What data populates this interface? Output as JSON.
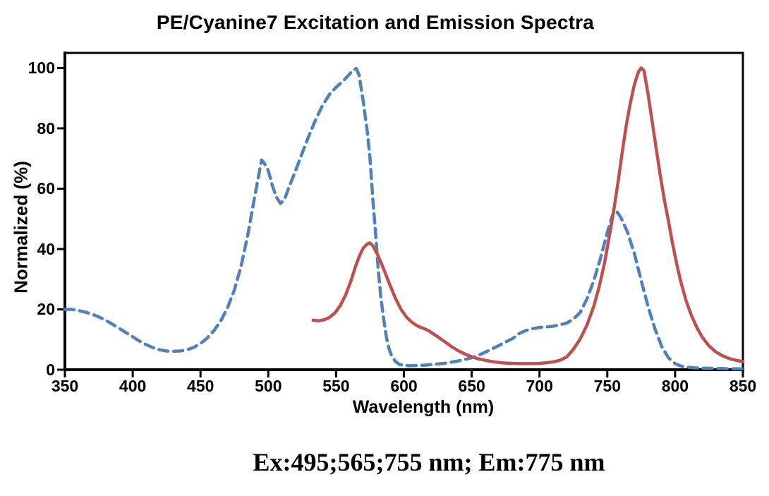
{
  "title": "PE/Cyanine7 Excitation and Emission Spectra",
  "annotation": "Ex:495;565;755 nm; Em:775 nm",
  "colors": {
    "excitation_blue": "#4F81BD",
    "emission_red": "#C0504D",
    "axis": "#000000",
    "text": "#000000",
    "background": "#FFFFFF"
  },
  "chart_data": {
    "type": "line",
    "title": "PE/Cyanine7 Excitation and Emission Spectra",
    "xlabel": "Wavelength (nm)",
    "ylabel": "Normalized (%)",
    "xlim": [
      350,
      850
    ],
    "ylim": [
      0,
      105
    ],
    "x_ticks": [
      350,
      400,
      450,
      500,
      550,
      600,
      650,
      700,
      750,
      800,
      850
    ],
    "y_ticks": [
      0,
      20,
      40,
      60,
      80,
      100
    ],
    "grid": false,
    "legend": "none",
    "frame": "box",
    "series": [
      {
        "name": "PE/Cyanine7 Excitation",
        "line_style": "dashed",
        "color": "#4F81BD",
        "peaks_nm": [
          495,
          565,
          755
        ],
        "points": [
          [
            350,
            20
          ],
          [
            355,
            20
          ],
          [
            360,
            19.6
          ],
          [
            365,
            19.1
          ],
          [
            370,
            18.4
          ],
          [
            375,
            17.5
          ],
          [
            380,
            16.4
          ],
          [
            385,
            15.1
          ],
          [
            390,
            13.7
          ],
          [
            395,
            12.3
          ],
          [
            400,
            10.9
          ],
          [
            405,
            9.5
          ],
          [
            410,
            8.3
          ],
          [
            415,
            7.3
          ],
          [
            420,
            6.6
          ],
          [
            425,
            6.2
          ],
          [
            430,
            6.1
          ],
          [
            435,
            6.2
          ],
          [
            440,
            6.6
          ],
          [
            445,
            7.4
          ],
          [
            450,
            8.7
          ],
          [
            455,
            10.5
          ],
          [
            460,
            13
          ],
          [
            465,
            16.2
          ],
          [
            470,
            20.6
          ],
          [
            475,
            26.5
          ],
          [
            480,
            34.5
          ],
          [
            485,
            45
          ],
          [
            490,
            57.5
          ],
          [
            493,
            64.5
          ],
          [
            495,
            69.5
          ],
          [
            497,
            68.5
          ],
          [
            500,
            66
          ],
          [
            503,
            61
          ],
          [
            506,
            57.2
          ],
          [
            509,
            55.1
          ],
          [
            512,
            56.5
          ],
          [
            515,
            60.2
          ],
          [
            520,
            65.8
          ],
          [
            525,
            71.8
          ],
          [
            530,
            77.6
          ],
          [
            535,
            83
          ],
          [
            540,
            87.6
          ],
          [
            545,
            91.2
          ],
          [
            550,
            93.6
          ],
          [
            555,
            95.6
          ],
          [
            560,
            98
          ],
          [
            563,
            99.4
          ],
          [
            565,
            99.8
          ],
          [
            567,
            97.5
          ],
          [
            570,
            89
          ],
          [
            573,
            79
          ],
          [
            575,
            70
          ],
          [
            577,
            57
          ],
          [
            579,
            46
          ],
          [
            581,
            33.5
          ],
          [
            583,
            24
          ],
          [
            585,
            17
          ],
          [
            587,
            11
          ],
          [
            589,
            7
          ],
          [
            591,
            4.5
          ],
          [
            594,
            2.6
          ],
          [
            597,
            1.7
          ],
          [
            600,
            1.4
          ],
          [
            605,
            1.3
          ],
          [
            610,
            1.4
          ],
          [
            615,
            1.5
          ],
          [
            620,
            1.7
          ],
          [
            625,
            1.9
          ],
          [
            630,
            2.1
          ],
          [
            635,
            2.5
          ],
          [
            640,
            2.9
          ],
          [
            645,
            3.4
          ],
          [
            650,
            4
          ],
          [
            655,
            4.8
          ],
          [
            660,
            5.8
          ],
          [
            665,
            6.9
          ],
          [
            670,
            8
          ],
          [
            675,
            9.2
          ],
          [
            680,
            10.3
          ],
          [
            685,
            12
          ],
          [
            690,
            13
          ],
          [
            695,
            13.6
          ],
          [
            700,
            14
          ],
          [
            705,
            14.2
          ],
          [
            710,
            14.4
          ],
          [
            715,
            14.9
          ],
          [
            720,
            15.4
          ],
          [
            725,
            16.8
          ],
          [
            730,
            19
          ],
          [
            735,
            23.5
          ],
          [
            740,
            29.5
          ],
          [
            745,
            37
          ],
          [
            750,
            45.5
          ],
          [
            753,
            50
          ],
          [
            755,
            52.7
          ],
          [
            757,
            52.4
          ],
          [
            760,
            50.5
          ],
          [
            765,
            45.5
          ],
          [
            770,
            38.5
          ],
          [
            775,
            29.5
          ],
          [
            780,
            21
          ],
          [
            785,
            13.7
          ],
          [
            790,
            7.8
          ],
          [
            795,
            4
          ],
          [
            800,
            2
          ],
          [
            805,
            1.1
          ],
          [
            810,
            0.8
          ],
          [
            815,
            0.6
          ],
          [
            820,
            0.5
          ],
          [
            825,
            0.5
          ],
          [
            830,
            0.4
          ],
          [
            835,
            0.4
          ],
          [
            840,
            0.3
          ],
          [
            845,
            0.3
          ],
          [
            850,
            0.3
          ]
        ]
      },
      {
        "name": "PE/Cyanine7 Emission",
        "line_style": "solid",
        "color": "#C0504D",
        "peaks_nm": [
          575,
          775
        ],
        "points": [
          [
            533,
            16.4
          ],
          [
            537,
            16.2
          ],
          [
            541,
            16.5
          ],
          [
            545,
            17.3
          ],
          [
            549,
            18.8
          ],
          [
            553,
            21.2
          ],
          [
            557,
            24.8
          ],
          [
            561,
            29.5
          ],
          [
            564,
            33.8
          ],
          [
            567,
            37.5
          ],
          [
            570,
            40.3
          ],
          [
            573,
            41.7
          ],
          [
            575,
            42
          ],
          [
            577,
            41.1
          ],
          [
            580,
            38.7
          ],
          [
            583,
            35.7
          ],
          [
            586,
            32.3
          ],
          [
            590,
            27.7
          ],
          [
            594,
            23.4
          ],
          [
            598,
            19.9
          ],
          [
            602,
            17.4
          ],
          [
            606,
            15.7
          ],
          [
            610,
            14.5
          ],
          [
            615,
            13.6
          ],
          [
            618,
            13
          ],
          [
            620,
            12.4
          ],
          [
            625,
            10.9
          ],
          [
            630,
            9.3
          ],
          [
            635,
            7.7
          ],
          [
            640,
            6.3
          ],
          [
            645,
            5.2
          ],
          [
            650,
            4.3
          ],
          [
            655,
            3.6
          ],
          [
            660,
            3.1
          ],
          [
            665,
            2.7
          ],
          [
            670,
            2.4
          ],
          [
            675,
            2.2
          ],
          [
            680,
            2.1
          ],
          [
            685,
            2
          ],
          [
            690,
            2
          ],
          [
            695,
            2
          ],
          [
            700,
            2.1
          ],
          [
            705,
            2.3
          ],
          [
            710,
            2.6
          ],
          [
            715,
            3.1
          ],
          [
            720,
            4.2
          ],
          [
            725,
            6.8
          ],
          [
            730,
            10.2
          ],
          [
            735,
            14.8
          ],
          [
            740,
            21
          ],
          [
            744,
            27.5
          ],
          [
            748,
            35.5
          ],
          [
            752,
            45.5
          ],
          [
            755,
            53.5
          ],
          [
            758,
            62.5
          ],
          [
            761,
            72
          ],
          [
            764,
            81
          ],
          [
            767,
            88.5
          ],
          [
            770,
            94.5
          ],
          [
            773,
            98.8
          ],
          [
            775,
            100
          ],
          [
            777,
            99.2
          ],
          [
            780,
            91.5
          ],
          [
            783,
            82.5
          ],
          [
            786,
            73.5
          ],
          [
            789,
            64.5
          ],
          [
            792,
            56.5
          ],
          [
            795,
            49.5
          ],
          [
            798,
            42
          ],
          [
            801,
            35.5
          ],
          [
            804,
            29.5
          ],
          [
            808,
            23
          ],
          [
            812,
            18
          ],
          [
            816,
            14
          ],
          [
            820,
            10.8
          ],
          [
            825,
            7.9
          ],
          [
            830,
            5.9
          ],
          [
            835,
            4.6
          ],
          [
            840,
            3.7
          ],
          [
            845,
            3.1
          ],
          [
            850,
            2.7
          ]
        ]
      }
    ]
  }
}
